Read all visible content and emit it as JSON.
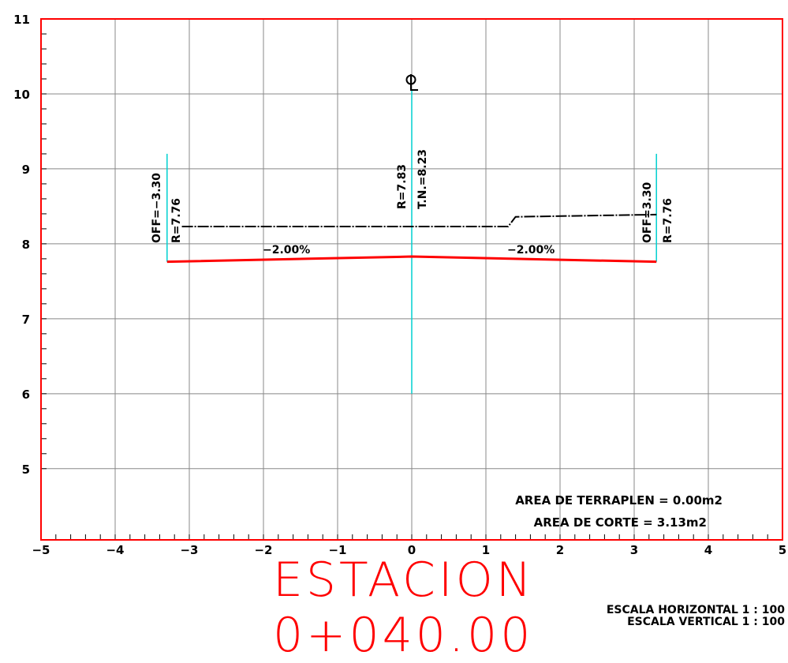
{
  "chart_data": {
    "type": "line",
    "x_ticks": [
      "−5",
      "−4",
      "−3",
      "−2",
      "−1",
      "0",
      "1",
      "2",
      "3",
      "4",
      "5"
    ],
    "y_ticks": [
      "5",
      "6",
      "7",
      "8",
      "9",
      "10",
      "11"
    ],
    "xlim": [
      -5,
      5
    ],
    "ylim": [
      4.05,
      11
    ],
    "grid": true,
    "series": [
      {
        "color": "#ff0000",
        "x": [
          -3.3,
          0,
          3.3
        ],
        "y": [
          7.76,
          7.83,
          7.76
        ]
      },
      {
        "color": "#000000",
        "x": [
          -3.1,
          0,
          1.3,
          1.4,
          3.3
        ],
        "y": [
          8.23,
          8.23,
          8.23,
          8.36,
          8.39
        ]
      }
    ],
    "offset_lines": [
      {
        "x": -3.3,
        "y_from": 7.76,
        "y_to": 9.2
      },
      {
        "x": 0,
        "y_from": 6.0,
        "y_to": 10.05
      },
      {
        "x": 3.3,
        "y_from": 7.76,
        "y_to": 9.2
      }
    ],
    "annotations": {
      "left_off": "OFF=−3.30",
      "left_r": "R=7.76",
      "center_r": "R=7.83",
      "center_tn": "T.N.=8.23",
      "right_off": "OFF=3.30",
      "right_r": "R=7.76",
      "slope_left": "−2.00%",
      "slope_right": "−2.00%",
      "centerline_symbol": "CL"
    },
    "colors": {
      "frame": "#ff0000",
      "grid": "#888888",
      "offset_line": "#00d0d0",
      "subgrade": "#ff0000",
      "terrain": "#000000"
    }
  },
  "areas": {
    "terraplen": "AREA DE TERRAPLEN = 0.00m2",
    "corte": "AREA DE CORTE = 3.13m2"
  },
  "station": "ESTACION 0+040.00",
  "scales": {
    "horizontal": "ESCALA HORIZONTAL 1 : 100",
    "vertical": "ESCALA VERTICAL 1 : 100"
  }
}
